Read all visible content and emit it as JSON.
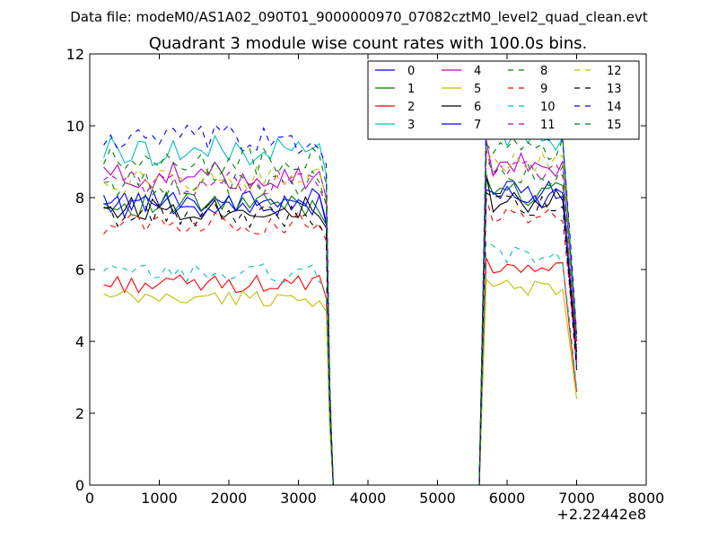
{
  "chart_data": {
    "type": "line",
    "suptitle": "Data file: modeM0/AS1A02_090T01_9000000970_07082cztM0_level2_quad_clean.evt",
    "title": "Quadrant 3 module wise count rates with 100.0s bins.",
    "xlabel": "",
    "ylabel": "",
    "x_offset_label": "+2.22442e8",
    "xlim": [
      0,
      8000
    ],
    "ylim": [
      0,
      12
    ],
    "xticks": [
      0,
      1000,
      2000,
      3000,
      4000,
      5000,
      6000,
      7000,
      8000
    ],
    "yticks": [
      0,
      2,
      4,
      6,
      8,
      10,
      12
    ],
    "xtick_labels": [
      "0",
      "1000",
      "2000",
      "3000",
      "4000",
      "5000",
      "6000",
      "7000",
      "8000"
    ],
    "ytick_labels": [
      "0",
      "2",
      "4",
      "6",
      "8",
      "10",
      "12"
    ],
    "grid": false,
    "legend_position": "top-right",
    "segment_1": {
      "x_start": 200,
      "x_end": 3300,
      "step": 100
    },
    "drop": {
      "x_values": [
        3400,
        3450,
        3500
      ]
    },
    "zero_span": {
      "x_start": 3500,
      "x_end": 5600
    },
    "segment_2": {
      "x_start": 5600,
      "x_end": 7000,
      "step": 100
    },
    "series": [
      {
        "name": "0",
        "color": "#0000ff",
        "dash": "solid",
        "level_1": 7.9,
        "level_2": 8.2,
        "final": 3.5
      },
      {
        "name": "1",
        "color": "#008000",
        "dash": "solid",
        "level_1": 7.8,
        "level_2": 8.1,
        "final": 3.6
      },
      {
        "name": "2",
        "color": "#ff0000",
        "dash": "solid",
        "level_1": 5.6,
        "level_2": 6.0,
        "final": 2.6
      },
      {
        "name": "3",
        "color": "#00bfbf",
        "dash": "solid",
        "level_1": 9.3,
        "level_2": 9.6,
        "final": 4.2
      },
      {
        "name": "4",
        "color": "#bf00bf",
        "dash": "solid",
        "level_1": 8.6,
        "level_2": 8.9,
        "final": 4.0
      },
      {
        "name": "5",
        "color": "#bfbf00",
        "dash": "solid",
        "level_1": 5.2,
        "level_2": 5.5,
        "final": 2.4
      },
      {
        "name": "6",
        "color": "#000000",
        "dash": "solid",
        "level_1": 7.7,
        "level_2": 7.9,
        "final": 3.7
      },
      {
        "name": "7",
        "color": "#0000ff",
        "dash": "solid",
        "level_1": 7.8,
        "level_2": 8.0,
        "final": 3.3
      },
      {
        "name": "8",
        "color": "#008000",
        "dash": "dashed",
        "level_1": 8.4,
        "level_2": 8.6,
        "final": 3.9
      },
      {
        "name": "9",
        "color": "#ff0000",
        "dash": "dashed",
        "level_1": 7.3,
        "level_2": 7.6,
        "final": 3.4
      },
      {
        "name": "10",
        "color": "#00bfbf",
        "dash": "dashed",
        "level_1": 5.9,
        "level_2": 6.4,
        "final": 2.7
      },
      {
        "name": "11",
        "color": "#bf00bf",
        "dash": "dashed",
        "level_1": 8.4,
        "level_2": 8.7,
        "final": 3.8
      },
      {
        "name": "12",
        "color": "#bfbf00",
        "dash": "dashed",
        "level_1": 8.5,
        "level_2": 8.9,
        "final": 4.1
      },
      {
        "name": "13",
        "color": "#000000",
        "dash": "dashed",
        "level_1": 7.5,
        "level_2": 7.8,
        "final": 3.2
      },
      {
        "name": "14",
        "color": "#0000ff",
        "dash": "dashed",
        "level_1": 9.6,
        "level_2": 9.9,
        "final": 4.2
      },
      {
        "name": "15",
        "color": "#008000",
        "dash": "dashed",
        "level_1": 9.0,
        "level_2": 9.3,
        "final": 4.1
      }
    ]
  }
}
